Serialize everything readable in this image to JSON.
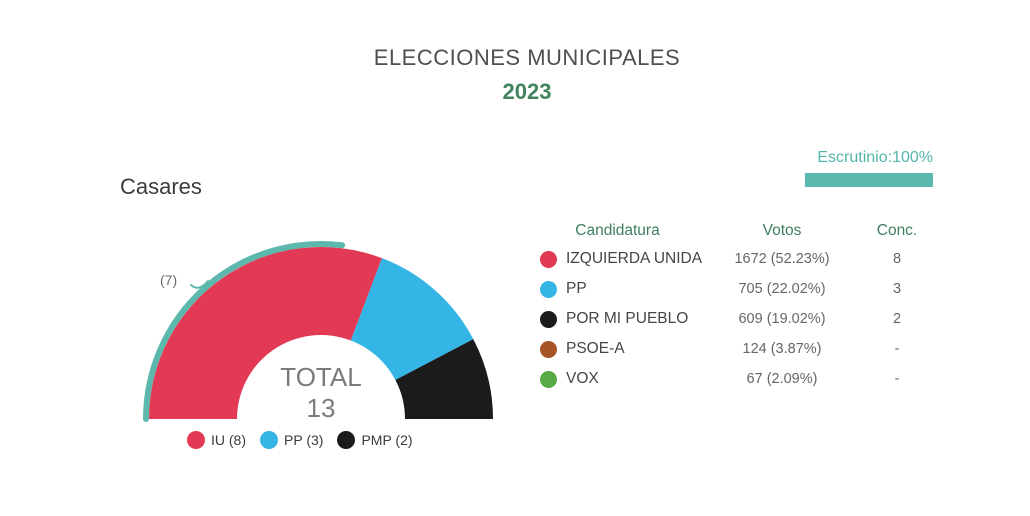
{
  "header": {
    "title": "ELECCIONES MUNICIPALES",
    "year": "2023"
  },
  "escrutinio": {
    "label": "Escrutinio:100%",
    "percent": 100
  },
  "municipality": "Casares",
  "chart_data": {
    "type": "pie",
    "subtype": "half-donut-seats",
    "title": "Casares",
    "total_label": "TOTAL",
    "total_seats": 13,
    "majority_marker": {
      "label": "(7)",
      "seats": 7
    },
    "categories": [
      "IU",
      "PP",
      "PMP"
    ],
    "values": [
      8,
      3,
      2
    ],
    "series": [
      {
        "name": "IU",
        "seats": 8,
        "color": "#e23a54"
      },
      {
        "name": "PP",
        "seats": 3,
        "color": "#35b5e5"
      },
      {
        "name": "PMP",
        "seats": 2,
        "color": "#1b1b1b"
      }
    ],
    "legend": [
      {
        "label": "IU (8)",
        "color": "#e23a54"
      },
      {
        "label": "PP (3)",
        "color": "#35b5e5"
      },
      {
        "label": "PMP (2)",
        "color": "#1b1b1b"
      }
    ],
    "legend_position": "bottom"
  },
  "results_table": {
    "columns": [
      "Candidatura",
      "Votos",
      "Conc."
    ],
    "rows": [
      {
        "party": "IZQUIERDA UNIDA",
        "color": "#e23a54",
        "votes": "1672 (52.23%)",
        "conc": "8"
      },
      {
        "party": "PP",
        "color": "#35b5e5",
        "votes": "705 (22.02%)",
        "conc": "3"
      },
      {
        "party": "POR MI PUEBLO",
        "color": "#1b1b1b",
        "votes": "609 (19.02%)",
        "conc": "2"
      },
      {
        "party": "PSOE-A",
        "color": "#a75426",
        "votes": "124 (3.87%)",
        "conc": "-"
      },
      {
        "party": "VOX",
        "color": "#57aa46",
        "votes": "67 (2.09%)",
        "conc": "-"
      }
    ]
  },
  "colors": {
    "accent_teal": "#5cb8ad",
    "header_green": "#3f7e5d",
    "year_green": "#41845e",
    "title_gray": "#4f4f4f",
    "total_gray": "#7b7b7b"
  }
}
